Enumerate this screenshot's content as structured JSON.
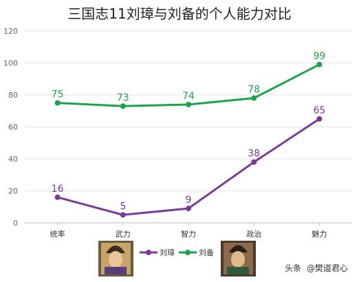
{
  "chart_data": {
    "type": "line",
    "title": "三国志11刘璋与刘备的个人能力对比",
    "categories": [
      "统率",
      "武力",
      "智力",
      "政治",
      "魅力"
    ],
    "ylim": [
      0,
      120
    ],
    "yticks": [
      0,
      20,
      40,
      60,
      80,
      100,
      120
    ],
    "grid": true,
    "legend_position": "bottom",
    "series": [
      {
        "name": "刘璋",
        "color": "#7b3a9a",
        "values": [
          16,
          5,
          9,
          38,
          65
        ]
      },
      {
        "name": "刘备",
        "color": "#1aa34a",
        "values": [
          75,
          73,
          74,
          78,
          99
        ]
      }
    ]
  },
  "legend": {
    "left_portrait": "portrait-liu-zhang",
    "right_portrait": "portrait-liu-bei"
  },
  "watermark": {
    "prefix": "头条",
    "handle": "@樊道君心"
  }
}
